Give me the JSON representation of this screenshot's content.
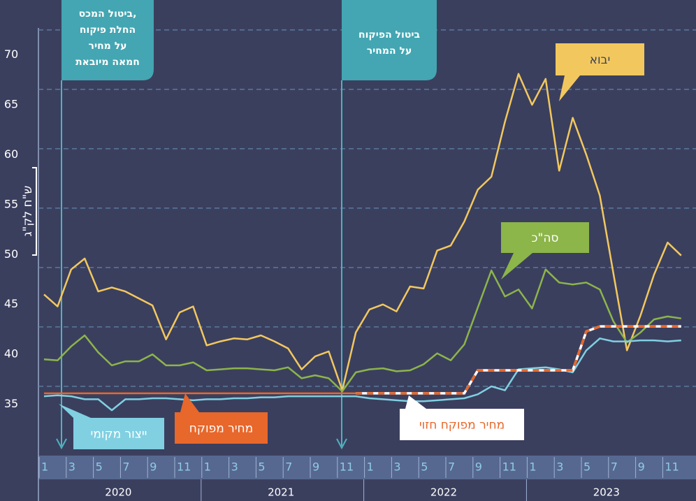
{
  "chart_data": {
    "type": "line",
    "y_label": "ש\"ח לק\"ג",
    "categories": [
      "1",
      null,
      "3",
      null,
      "5",
      null,
      "7",
      null,
      "9",
      null,
      "11",
      null,
      "1",
      null,
      "3",
      null,
      "5",
      null,
      "7",
      null,
      "9",
      null,
      "11",
      null,
      "1",
      null,
      "3",
      null,
      "5",
      null,
      "7",
      null,
      "9",
      null,
      "11",
      null,
      "1",
      null,
      "3",
      null,
      "5",
      null,
      "7",
      null,
      "9",
      null,
      "11",
      null
    ],
    "years": [
      "2020",
      "2021",
      "2022",
      "2023"
    ],
    "ylim": [
      30,
      75.5
    ],
    "yticks": [
      35,
      40,
      45,
      50,
      55,
      60,
      65,
      70
    ],
    "grid_lines": [
      36.8,
      42.75,
      48.7,
      54.65,
      60.6,
      66.55,
      72.5
    ],
    "annotations": [
      {
        "lines": [
          "ביטול המכס,",
          "החלת פיקוח",
          "על מחיר",
          "חמאה מיובאת"
        ]
      },
      {
        "lines": [
          "ביטול הפיקוח",
          "על המחיר"
        ]
      }
    ],
    "series": [
      {
        "name": "יבוא",
        "color": "#f2c85e",
        "values": [
          46,
          44.8,
          48.5,
          49.6,
          46.3,
          46.7,
          46.3,
          45.6,
          44.9,
          41.5,
          44.2,
          44.8,
          40.9,
          41.3,
          41.6,
          41.5,
          41.9,
          41.3,
          40.6,
          38.5,
          39.8,
          40.3,
          36.4,
          42.2,
          44.5,
          45,
          44.3,
          46.8,
          46.6,
          50.4,
          50.9,
          53.3,
          56.5,
          57.8,
          63.3,
          68.1,
          65,
          67.6,
          58.4,
          63.7,
          60,
          55.9,
          48.1,
          40.4,
          43.9,
          48,
          51.2,
          49.9
        ]
      },
      {
        "name": "סה\"כ",
        "color": "#8cb54a",
        "values": [
          39.5,
          39.4,
          40.8,
          41.9,
          40.2,
          38.9,
          39.3,
          39.3,
          40,
          38.9,
          38.9,
          39.2,
          38.4,
          38.5,
          38.6,
          38.6,
          38.5,
          38.4,
          38.7,
          37.6,
          37.9,
          37.6,
          36.3,
          38.2,
          38.5,
          38.6,
          38.3,
          38.4,
          39,
          40.1,
          39.4,
          41,
          44.7,
          48.4,
          45.8,
          46.5,
          44.6,
          48.5,
          47.2,
          47,
          47.2,
          46.5,
          43.3,
          41.2,
          42.2,
          43.5,
          43.8,
          43.6
        ]
      },
      {
        "name": "ייצור מקומי",
        "color": "#80d0e2",
        "values": [
          35.8,
          35.9,
          35.8,
          35.5,
          35.5,
          34.4,
          35.5,
          35.5,
          35.6,
          35.6,
          35.5,
          35.4,
          35.5,
          35.5,
          35.6,
          35.6,
          35.7,
          35.7,
          35.8,
          35.8,
          35.8,
          35.8,
          35.8,
          35.8,
          35.6,
          35.5,
          35.4,
          35.3,
          35.3,
          35.4,
          35.5,
          35.6,
          36,
          36.8,
          36.4,
          38.5,
          38.6,
          38.7,
          38.5,
          38.2,
          40.4,
          41.6,
          41.3,
          41.3,
          41.4,
          41.4,
          41.3,
          41.4
        ]
      },
      {
        "name": "מחיר מפוקח",
        "color": "#e8672a",
        "values": [
          36.1,
          36.1,
          36.1,
          36.1,
          36.1,
          36.1,
          36.1,
          36.1,
          36.1,
          36.1,
          36.1,
          36.1,
          36.1,
          36.1,
          36.1,
          36.1,
          36.1,
          36.1,
          36.1,
          36.1,
          36.1,
          36.1,
          36.1,
          36.1,
          null,
          null,
          null,
          null,
          null,
          null,
          null,
          null,
          null,
          null,
          null,
          null,
          null,
          null,
          null,
          null,
          null,
          null,
          null,
          null,
          null,
          null,
          null,
          null
        ]
      },
      {
        "name": "מחיר מפוקח חזוי",
        "color": "#e8672a",
        "dashed": true,
        "values": [
          null,
          null,
          null,
          null,
          null,
          null,
          null,
          null,
          null,
          null,
          null,
          null,
          null,
          null,
          null,
          null,
          null,
          null,
          null,
          null,
          null,
          null,
          null,
          36.1,
          36.1,
          36.1,
          36.1,
          36.1,
          36.1,
          36.1,
          36.1,
          36.1,
          38.4,
          38.4,
          38.4,
          38.4,
          38.4,
          38.4,
          38.4,
          38.4,
          42.3,
          42.8,
          42.8,
          42.8,
          42.8,
          42.8,
          42.8,
          42.8
        ]
      }
    ]
  }
}
